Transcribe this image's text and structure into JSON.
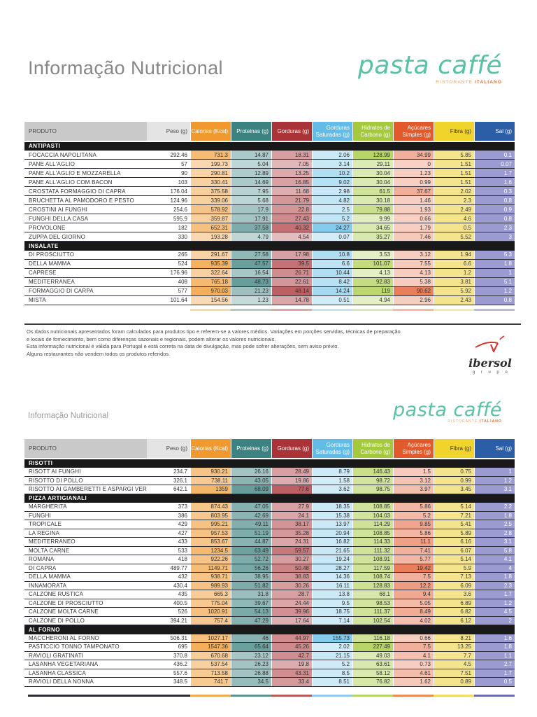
{
  "page1": {
    "title": "Informação Nutricional",
    "footer_lines": [
      "Os dados nutricionais apresentados foram calculados para produtos tipo e referem-se a valores médios. Variações em porções servidas, técnicas de preparação",
      "e locais de fornecimento, bem como diferenças sazonais e regionais, podem alterar os valores nutricionais.",
      "Esta informação nutricional é válida para Portugal e está correta na data de divulgação, mas pode sofrer alterações, sem aviso prévio.",
      "Alguns restaurantes não vendem todos os produtos referidos."
    ],
    "ibersol": {
      "name": "ibersol",
      "sub": "g r u p o",
      "mark_color": "#d6372e"
    }
  },
  "page2": {
    "title": "Informação Nutricional"
  },
  "logo": {
    "name": "pasta caffé",
    "tagline_left": "RISTORANTE",
    "tagline_right": "ITALIANO",
    "color": "#58c2a7",
    "tagline_left_color": "#f0a269",
    "tagline_right_color": "#e8682a"
  },
  "columns": [
    {
      "key": "produto",
      "label": "PRODUTO",
      "header_bg": "#c9c9c9",
      "header_text": "#4a4a4a",
      "mode": "text"
    },
    {
      "key": "peso",
      "label": "Peso (g)",
      "header_bg": "#e4e4e4",
      "header_text": "#4a4a4a",
      "mode": "plain"
    },
    {
      "key": "calorias",
      "label": "Calorias (Kcal)",
      "header_bg": "#f0992e",
      "header_text": "#ffffff",
      "mode": "scaled"
    },
    {
      "key": "proteinas",
      "label": "Proteinas (g)",
      "header_bg": "#3c8280",
      "header_text": "#ffffff",
      "mode": "scaled"
    },
    {
      "key": "gorduras",
      "label": "Gorduras (g)",
      "header_bg": "#aa3338",
      "header_text": "#ffffff",
      "mode": "scaled"
    },
    {
      "key": "saturadas",
      "label": "Gorduras Saturadas (g)",
      "header_bg": "#62bce5",
      "header_text": "#ffffff",
      "mode": "scaled"
    },
    {
      "key": "hidratos",
      "label": "Hidratos de Carbono (g)",
      "header_bg": "#a5c93d",
      "header_text": "#ffffff",
      "mode": "scaled"
    },
    {
      "key": "acucares",
      "label": "Açúcares Simples (g)",
      "header_bg": "#e2592c",
      "header_text": "#ffffff",
      "mode": "scaled"
    },
    {
      "key": "fibra",
      "label": "Fibra (g)",
      "header_bg": "#f0d32b",
      "header_text": "#3a3a3a",
      "mode": "fixed",
      "cell_bg": "#f3e48d",
      "cell_text": "#3a3a3a"
    },
    {
      "key": "sal",
      "label": "Sal (g)",
      "header_bg": "#2b5ea7",
      "header_text": "#ffffff",
      "mode": "fixed",
      "cell_bg": "#9b9bd1",
      "cell_text": "#ffffff"
    }
  ],
  "tables": [
    {
      "sections": [
        {
          "name": "ANTIPASTI",
          "rows": [
            {
              "produto": "FOCACCIA NAPOLITANA",
              "values": [
                "292.46",
                "731.3",
                "14.87",
                "18.31",
                "2.06",
                "128.99",
                "34.99",
                "5.85",
                "0.1"
              ]
            },
            {
              "produto": "PANE ALL'AGLIO",
              "values": [
                "57",
                "199.73",
                "5.04",
                "7.05",
                "3.14",
                "29.11",
                "0",
                "1.51",
                "0.07"
              ]
            },
            {
              "produto": "PANE ALL'AGLIO E MOZZARELLA",
              "values": [
                "90",
                "290.81",
                "12.89",
                "13.25",
                "10.2",
                "30.04",
                "1.23",
                "1.51",
                "1.7"
              ]
            },
            {
              "produto": "PANE ALL'AGLIO COM BACON",
              "values": [
                "103",
                "330.41",
                "14.69",
                "16.85",
                "9.02",
                "30.04",
                "0.99",
                "1.51",
                "1.6"
              ]
            },
            {
              "produto": "CROSTATA FORMAGGIO DI CAPRA",
              "values": [
                "176.04",
                "375.58",
                "7.95",
                "11.68",
                "2.98",
                "61.5",
                "37.67",
                "2.02",
                "0.3"
              ]
            },
            {
              "produto": "BRUCHETTA AL PAMODORO E PESTO",
              "values": [
                "124.96",
                "339.06",
                "5.68",
                "21.79",
                "4.82",
                "30.18",
                "1.46",
                "2.3",
                "0,8"
              ]
            },
            {
              "produto": "CROSTINI AI FUNGHI",
              "values": [
                "254.6",
                "578.92",
                "17.9",
                "22.8",
                "2.5",
                "79.88",
                "1.93",
                "2.49",
                "0.9"
              ]
            },
            {
              "produto": "FUNGHI DELLA CASA",
              "values": [
                "595.9",
                "359.87",
                "17.91",
                "27.43",
                "5.2",
                "9.99",
                "0.66",
                "4.6",
                "0.8"
              ]
            },
            {
              "produto": "PROVOLONE",
              "values": [
                "182",
                "652.31",
                "37.58",
                "40.32",
                "24.27",
                "34.65",
                "1.79",
                "0.5",
                "2.3"
              ]
            },
            {
              "produto": "ZUPPA DEL GIORNO",
              "values": [
                "330",
                "193.28",
                "4.79",
                "4.54",
                "0.07",
                "35.27",
                "7.46",
                "5.52",
                "3"
              ]
            }
          ]
        },
        {
          "name": "INSALATE",
          "rows": [
            {
              "produto": "DI PROSCIUTTO",
              "values": [
                "265",
                "291.67",
                "27.58",
                "17.98",
                "10.8",
                "3.53",
                "3.12",
                "1.94",
                "5.3"
              ]
            },
            {
              "produto": "DELLA MAMMA",
              "values": [
                "524",
                "935.39",
                "47.57",
                "39.5",
                "6.6",
                "101.07",
                "7.55",
                "6.6",
                "1.8"
              ]
            },
            {
              "produto": "CAPRESE",
              "values": [
                "176.96",
                "322.64",
                "16.54",
                "26.71",
                "10.44",
                "4.13",
                "4.13",
                "1.2",
                "1"
              ]
            },
            {
              "produto": "MEDITERRANEA",
              "values": [
                "408",
                "765.18",
                "48.73",
                "22.61",
                "8.42",
                "92.83",
                "5.38",
                "3.81",
                "5.1"
              ]
            },
            {
              "produto": "FORMAGGIO DI CARPA",
              "values": [
                "577",
                "970.03",
                "21.23",
                "48.14",
                "14.24",
                "119",
                "90.62",
                "5.92",
                "1.2"
              ]
            },
            {
              "produto": "MISTA",
              "values": [
                "101.64",
                "154.56",
                "1.23",
                "14.78",
                "0.51",
                "4.94",
                "2.96",
                "2.43",
                "0.8"
              ]
            }
          ]
        }
      ]
    },
    {
      "sections": [
        {
          "name": "RISOTTI",
          "rows": [
            {
              "produto": "RISOTT AI FUNGHI",
              "values": [
                "234.7",
                "930.21",
                "26.16",
                "28.49",
                "8.79",
                "146.43",
                "1.5",
                "0.75",
                "1"
              ]
            },
            {
              "produto": "RISOTTO DI POLLO",
              "values": [
                "326.1",
                "738.11",
                "43.05",
                "19.86",
                "1.58",
                "98.72",
                "3.12",
                "0.99",
                "1.2"
              ]
            },
            {
              "produto": "RISOTTO AI GAMBERETTI E ASPARGI VERDI",
              "values": [
                "642.1",
                "1359",
                "68.09",
                "77.6",
                "3.62",
                "98.75",
                "3.97",
                "3.45",
                "3.1"
              ]
            }
          ]
        },
        {
          "name": "PIZZA ARTIGIANALI",
          "rows": [
            {
              "produto": "MARGHERITA",
              "values": [
                "373",
                "874.43",
                "47.05",
                "27.9",
                "18.35",
                "108.85",
                "5.86",
                "5.14",
                "2.2"
              ]
            },
            {
              "produto": "FUNGHI",
              "values": [
                "386",
                "803.95",
                "42.69",
                "24.1",
                "15.38",
                "104.03",
                "5.2",
                "7.21",
                "1.8"
              ]
            },
            {
              "produto": "TROPICALE",
              "values": [
                "429",
                "995.21",
                "49.11",
                "38.17",
                "13.97",
                "114.29",
                "9.85",
                "5.41",
                "2.5"
              ]
            },
            {
              "produto": "LA REGINA",
              "values": [
                "427",
                "957.53",
                "51.19",
                "35.28",
                "20.94",
                "108.85",
                "5.86",
                "5.89",
                "2.8"
              ]
            },
            {
              "produto": "MEDITERRANEO",
              "values": [
                "433",
                "853.67",
                "44.87",
                "24.31",
                "16.82",
                "114.33",
                "11.1",
                "6.16",
                "3.1"
              ]
            },
            {
              "produto": "MOLTA CARNE",
              "values": [
                "533",
                "1234.5",
                "63.49",
                "59.57",
                "21.65",
                "111.32",
                "7.41",
                "6.07",
                "5.8"
              ]
            },
            {
              "produto": "ROMANA",
              "values": [
                "418",
                "922.26",
                "52.72",
                "30.27",
                "19.24",
                "108.91",
                "5.77",
                "5.14",
                "4.1"
              ]
            },
            {
              "produto": "DI CAPRA",
              "values": [
                "489.77",
                "1149.71",
                "56.26",
                "50.48",
                "28.27",
                "117.59",
                "19.42",
                "5.9",
                "4"
              ]
            },
            {
              "produto": "DELLA MAMMA",
              "values": [
                "432",
                "938.71",
                "38.95",
                "38.83",
                "14.36",
                "108.74",
                "7.5",
                "7.13",
                "1.8"
              ]
            },
            {
              "produto": "INNAMORATA",
              "values": [
                "430.4",
                "989.93",
                "51.82",
                "30.26",
                "16.11",
                "128.83",
                "12.2",
                "6.09",
                "2.3"
              ]
            },
            {
              "produto": "CALZONE RUSTICA",
              "values": [
                "435",
                "665.3",
                "31.8",
                "28.7",
                "13.8",
                "68.1",
                "9.4",
                "3.6",
                "1.7"
              ]
            },
            {
              "produto": "CALZONE DI PROSCIUTTO",
              "values": [
                "400.5",
                "775.04",
                "39.67",
                "24.44",
                "9.5",
                "98.53",
                "5.05",
                "6.89",
                "1.2"
              ]
            },
            {
              "produto": "CALZONE MOLTA CARNE",
              "values": [
                "526",
                "1020.91",
                "54.13",
                "39.96",
                "18.75",
                "111.37",
                "8.49",
                "6.82",
                "4.5"
              ]
            },
            {
              "produto": "CALZONE DI POLLO",
              "values": [
                "394.21",
                "757.4",
                "47.29",
                "17.64",
                "7.14",
                "102.54",
                "4.02",
                "6.12",
                "2"
              ]
            }
          ]
        },
        {
          "name": "AL FORNO",
          "rows": [
            {
              "produto": "MACCHERONI AL FORNO",
              "values": [
                "506.31",
                "1027.17",
                "46",
                "44.97",
                "155.73",
                "116.18",
                "0.66",
                "8.21",
                "1.6"
              ]
            },
            {
              "produto": "PASTICCIO TONNO TAMPONATO",
              "values": [
                "695",
                "1547.36",
                "65.64",
                "45.26",
                "2.02",
                "227.49",
                "7.5",
                "13.25",
                "1.8"
              ]
            },
            {
              "produto": "RAVIOLI GRATINATI",
              "values": [
                "370.8",
                "670.68",
                "23.12",
                "42.7",
                "21.15",
                "49.03",
                "4.1",
                "7.7",
                "1.1"
              ]
            },
            {
              "produto": "LASANHA VEGETARIANA",
              "values": [
                "436.2",
                "537.54",
                "26.23",
                "19.8",
                "5.2",
                "63.61",
                "0.73",
                "4.5",
                "2.7"
              ]
            },
            {
              "produto": "LASANHA CLASSICA",
              "values": [
                "557.6",
                "713.58",
                "26.88",
                "43.31",
                "8.5",
                "58.12",
                "4.61",
                "7.51",
                "1.7"
              ]
            },
            {
              "produto": "RAVIOLI DELLA NONNA",
              "values": [
                "348.5",
                "741.7",
                "34.5",
                "33.4",
                "8.51",
                "76.82",
                "1.62",
                "0.89",
                "0.5"
              ]
            }
          ]
        }
      ]
    }
  ],
  "decor": {
    "strip1_colors": [
      "#f7d9ac",
      "#afc9c4",
      "#dca9a4",
      "#c3e2f5",
      "#d9e8b4",
      "#f2bd9e",
      "#f6eba8",
      "#bcbcde"
    ],
    "bottom_dark": "#2b2b33",
    "bottom_colors": [
      "#efa950",
      "#5c938f",
      "#b75b54",
      "#8fcbec",
      "#b7d468",
      "#e98b54",
      "#f2db62",
      "#6b6baf"
    ]
  }
}
